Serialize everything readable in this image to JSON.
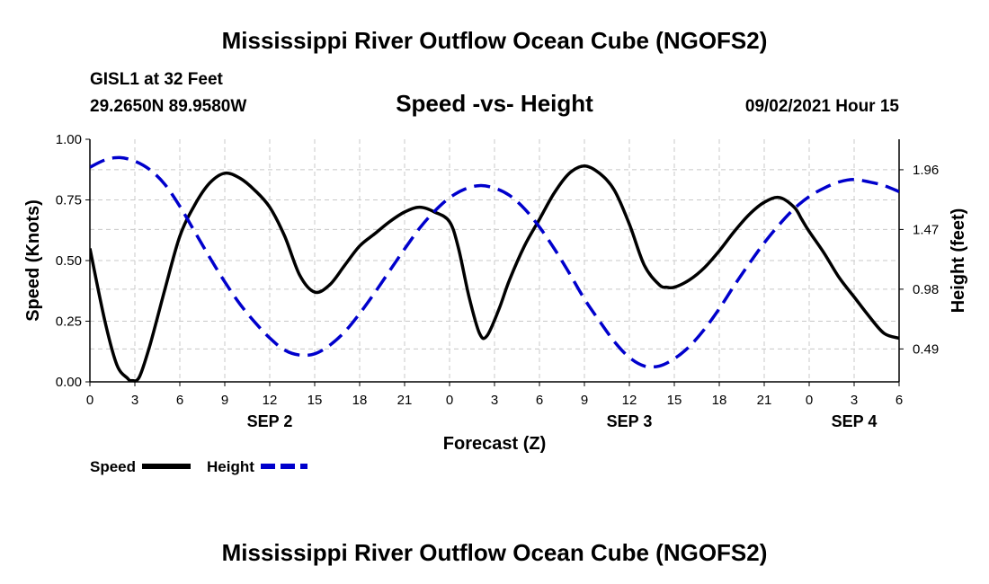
{
  "page": {
    "title_top": "Mississippi River Outflow Ocean Cube (NGOFS2)",
    "title_bottom": "Mississippi River Outflow Ocean Cube (NGOFS2)",
    "station": "GISL1 at 32 Feet",
    "coords": "29.2650N  89.9580W",
    "datetime": "09/02/2021 Hour 15"
  },
  "colors": {
    "speed": "#000000",
    "height": "#0000cc",
    "grid": "#c8c8c8"
  },
  "chart_data": {
    "type": "line",
    "title": "Speed -vs- Height",
    "xlabel": "Forecast (Z)",
    "ylabel": "Speed (Knots)",
    "y2label": "Height (feet)",
    "xlim": [
      0,
      54
    ],
    "ylim": [
      0,
      1.0
    ],
    "y2lim": [
      0.22,
      2.21
    ],
    "x_ticks": [
      0,
      3,
      6,
      9,
      12,
      15,
      18,
      21,
      24,
      27,
      30,
      33,
      36,
      39,
      42,
      45,
      48,
      51,
      54
    ],
    "x_tick_labels": [
      "0",
      "3",
      "6",
      "9",
      "12",
      "15",
      "18",
      "21",
      "0",
      "3",
      "6",
      "9",
      "12",
      "15",
      "18",
      "21",
      "0",
      "3",
      "6"
    ],
    "date_labels": [
      {
        "x": 12,
        "label": "SEP 2"
      },
      {
        "x": 36,
        "label": "SEP 3"
      },
      {
        "x": 51,
        "label": "SEP 4"
      }
    ],
    "y_ticks": [
      0,
      0.25,
      0.5,
      0.75,
      1.0
    ],
    "y_tick_labels": [
      "0.00",
      "0.25",
      "0.50",
      "0.75",
      "1.00"
    ],
    "y2_ticks": [
      0.49,
      0.98,
      1.47,
      1.96
    ],
    "y2_tick_labels": [
      "0.49",
      "0.98",
      "1.47",
      "1.96"
    ],
    "legend": {
      "position": "bottom-left",
      "entries": [
        "Speed",
        "Height"
      ]
    },
    "series": [
      {
        "name": "Speed",
        "axis": "left",
        "style": "solid",
        "x": [
          0,
          1,
          1.8,
          2.5,
          2.8,
          3.3,
          4,
          5,
          6,
          7,
          8,
          9,
          10,
          11,
          12,
          13,
          14,
          15,
          16,
          17,
          18,
          19,
          20,
          21,
          22,
          23,
          24,
          24.6,
          25.3,
          26,
          26.5,
          27.3,
          28,
          29,
          30,
          31,
          32,
          33,
          34,
          35,
          36,
          37,
          38,
          38.5,
          39,
          40,
          41,
          42,
          43,
          44,
          45,
          46,
          47,
          47.5,
          48,
          49,
          50,
          51,
          52,
          53,
          54
        ],
        "values": [
          0.55,
          0.25,
          0.07,
          0.015,
          0.005,
          0.02,
          0.15,
          0.38,
          0.6,
          0.73,
          0.82,
          0.86,
          0.84,
          0.79,
          0.72,
          0.6,
          0.44,
          0.37,
          0.4,
          0.48,
          0.56,
          0.61,
          0.66,
          0.7,
          0.72,
          0.7,
          0.66,
          0.55,
          0.35,
          0.2,
          0.19,
          0.3,
          0.42,
          0.56,
          0.67,
          0.78,
          0.86,
          0.89,
          0.86,
          0.79,
          0.65,
          0.48,
          0.4,
          0.39,
          0.39,
          0.42,
          0.47,
          0.54,
          0.62,
          0.69,
          0.74,
          0.76,
          0.72,
          0.67,
          0.62,
          0.53,
          0.43,
          0.35,
          0.27,
          0.2,
          0.18
        ]
      },
      {
        "name": "Height",
        "axis": "right",
        "style": "dashed",
        "x": [
          0,
          1,
          2,
          3,
          4,
          5,
          6,
          7,
          8,
          9,
          10,
          11,
          12,
          13,
          14,
          15,
          16,
          17,
          18,
          19,
          20,
          21,
          22,
          23,
          24,
          25,
          26,
          27,
          28,
          29,
          30,
          31,
          32,
          33,
          34,
          35,
          36,
          37,
          38,
          39,
          40,
          41,
          42,
          43,
          44,
          45,
          46,
          47,
          48,
          49,
          50,
          51,
          52,
          53,
          54
        ],
        "values": [
          1.98,
          2.04,
          2.06,
          2.03,
          1.96,
          1.84,
          1.66,
          1.45,
          1.24,
          1.04,
          0.86,
          0.71,
          0.58,
          0.48,
          0.44,
          0.45,
          0.52,
          0.63,
          0.78,
          0.95,
          1.13,
          1.31,
          1.48,
          1.62,
          1.73,
          1.8,
          1.83,
          1.81,
          1.75,
          1.64,
          1.49,
          1.31,
          1.11,
          0.9,
          0.72,
          0.55,
          0.42,
          0.35,
          0.35,
          0.41,
          0.51,
          0.65,
          0.82,
          1.01,
          1.19,
          1.36,
          1.51,
          1.64,
          1.74,
          1.81,
          1.86,
          1.88,
          1.86,
          1.83,
          1.78
        ]
      }
    ]
  }
}
